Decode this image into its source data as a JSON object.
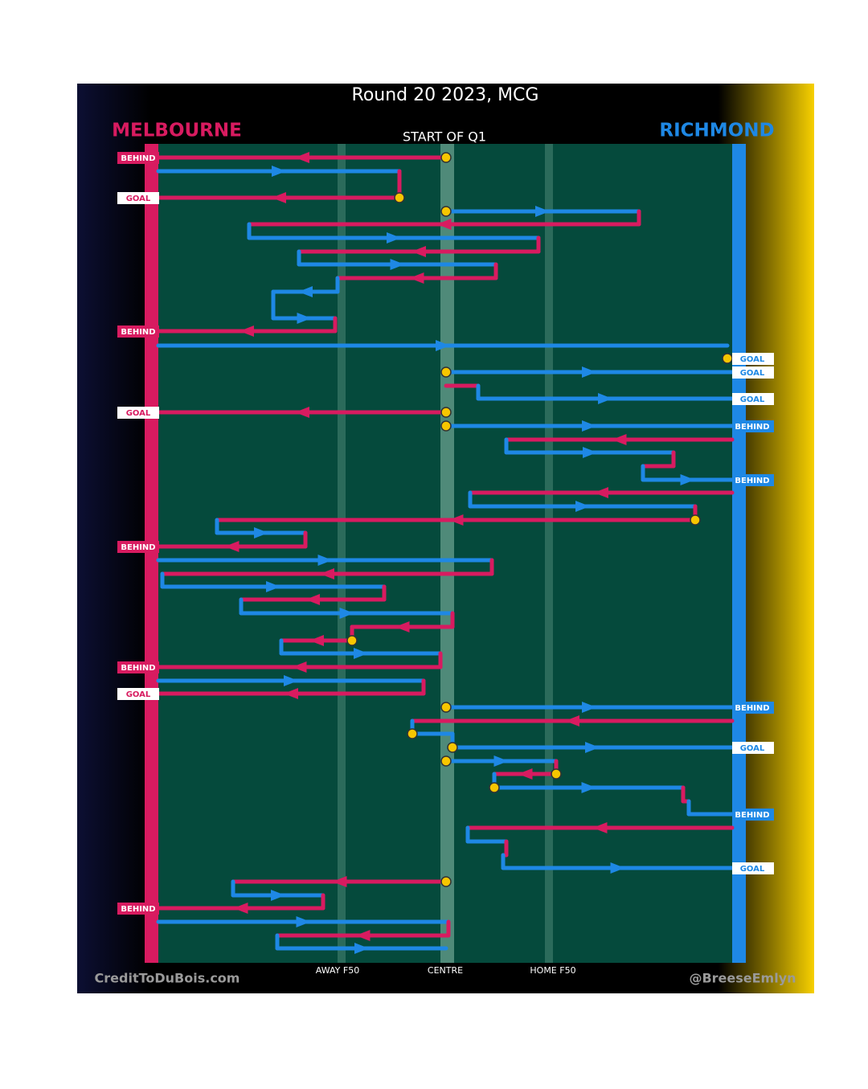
{
  "title": "Round 20 2023, MCG",
  "home_team": "MELBOURNE",
  "away_team": "RICHMOND",
  "period": "START OF Q1",
  "field_labels": [
    "AWAY F50",
    "CENTRE",
    "HOME F50"
  ],
  "credit_left": "CreditToDuBois.com",
  "credit_right": "@BreeseEmlyn",
  "melbourne_outcomes": [
    "BEHIND",
    "GOAL",
    "BEHIND",
    "GOAL",
    "BEHIND",
    "BEHIND",
    "GOAL",
    "BEHIND"
  ],
  "richmond_outcomes": [
    "GOAL",
    "GOAL",
    "GOAL",
    "BEHIND",
    "BEHIND",
    "BEHIND",
    "GOAL",
    "BEHIND",
    "GOAL"
  ]
}
